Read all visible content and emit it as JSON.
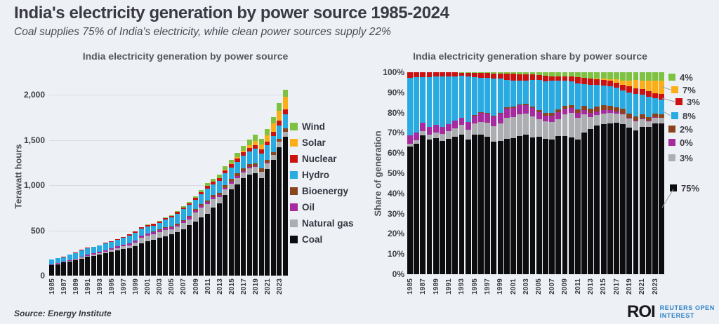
{
  "header": {
    "title": "India's electricity generation by power source 1985-2024",
    "subtitle": "Coal supplies 75% of India's electricity, while clean power sources supply 22%"
  },
  "charts": {
    "left": {
      "title": "India electricity generation by power source",
      "y_axis_label": "Terawatt hours",
      "y_ticks": [
        "0",
        "500",
        "1,000",
        "1,500",
        "2,000"
      ]
    },
    "right": {
      "title": "India electricity generation share by power source",
      "y_axis_label": "Share of generation",
      "y_ticks": [
        "0%",
        "10%",
        "20%",
        "30%",
        "40%",
        "50%",
        "60%",
        "70%",
        "80%",
        "90%",
        "100%"
      ]
    }
  },
  "legend": {
    "items": [
      {
        "label": "Wind",
        "color": "#7FC241"
      },
      {
        "label": "Solar",
        "color": "#FBAE17"
      },
      {
        "label": "Nuclear",
        "color": "#CC1111"
      },
      {
        "label": "Hydro",
        "color": "#29ABE2"
      },
      {
        "label": "Bioenergy",
        "color": "#8A431C"
      },
      {
        "label": "Oil",
        "color": "#A62B9E"
      },
      {
        "label": "Natural gas",
        "color": "#ACAEB1"
      },
      {
        "label": "Coal",
        "color": "#0D0D0F"
      }
    ]
  },
  "footer": {
    "source": "Source: Energy Institute",
    "logo_text": "ROI",
    "logo_line1": "REUTERS OPEN",
    "logo_line2": "INTEREST"
  },
  "chart_data": [
    {
      "type": "bar",
      "stacked": true,
      "title": "India electricity generation by power source",
      "xlabel": "",
      "ylabel": "Terawatt hours",
      "ylim": [
        0,
        2100
      ],
      "y_tick_values": [
        0,
        500,
        1000,
        1500,
        2000
      ],
      "x_tick_step": 2,
      "x_years": [
        1985,
        1986,
        1987,
        1988,
        1989,
        1990,
        1991,
        1992,
        1993,
        1994,
        1995,
        1996,
        1997,
        1998,
        1999,
        2000,
        2001,
        2002,
        2003,
        2004,
        2005,
        2006,
        2007,
        2008,
        2009,
        2010,
        2011,
        2012,
        2013,
        2014,
        2015,
        2016,
        2017,
        2018,
        2019,
        2020,
        2021,
        2022,
        2023,
        2024
      ],
      "unit": "TWh",
      "series": [
        {
          "name": "Coal",
          "color": "#0D0D0F",
          "values": [
            114,
            128,
            144,
            157,
            173,
            190,
            206,
            219,
            233,
            245,
            265,
            278,
            292,
            301,
            323,
            360,
            380,
            395,
            415,
            435,
            455,
            480,
            515,
            555,
            600,
            640,
            680,
            750,
            800,
            890,
            950,
            1010,
            1075,
            1120,
            1130,
            1075,
            1180,
            1280,
            1420,
            1535
          ]
        },
        {
          "name": "Natural gas",
          "color": "#ACAEB1",
          "values": [
            2,
            3,
            4,
            5,
            7,
            10,
            12,
            14,
            16,
            18,
            22,
            26,
            30,
            35,
            42,
            56,
            60,
            62,
            63,
            66,
            60,
            62,
            65,
            68,
            95,
            115,
            110,
            95,
            67,
            60,
            66,
            70,
            68,
            70,
            69,
            70,
            64,
            50,
            58,
            55
          ]
        },
        {
          "name": "Oil",
          "color": "#A62B9E",
          "values": [
            8,
            8,
            9,
            9,
            10,
            10,
            11,
            12,
            12,
            13,
            15,
            18,
            20,
            22,
            24,
            25,
            25,
            25,
            26,
            26,
            22,
            20,
            25,
            28,
            25,
            22,
            23,
            23,
            22,
            23,
            23,
            20,
            15,
            10,
            7,
            5,
            4,
            3,
            3,
            3
          ]
        },
        {
          "name": "Bioenergy",
          "color": "#8A431C",
          "values": [
            0,
            0,
            0,
            0,
            0,
            0,
            0,
            0,
            0,
            1,
            1,
            1,
            1,
            2,
            2,
            2,
            3,
            3,
            4,
            5,
            8,
            9,
            10,
            12,
            14,
            15,
            18,
            23,
            25,
            28,
            30,
            30,
            31,
            32,
            33,
            33,
            32,
            33,
            33,
            33
          ]
        },
        {
          "name": "Hydro",
          "color": "#29ABE2",
          "values": [
            51,
            54,
            47,
            58,
            62,
            72,
            73,
            70,
            70,
            83,
            72,
            69,
            75,
            83,
            82,
            74,
            74,
            68,
            70,
            85,
            99,
            114,
            124,
            117,
            107,
            111,
            131,
            115,
            132,
            129,
            124,
            129,
            135,
            140,
            162,
            164,
            160,
            175,
            149,
            155
          ]
        },
        {
          "name": "Nuclear",
          "color": "#CC1111",
          "values": [
            5,
            5,
            5,
            6,
            5,
            6,
            6,
            7,
            5,
            6,
            8,
            9,
            10,
            12,
            13,
            17,
            19,
            19,
            18,
            17,
            17,
            19,
            17,
            15,
            19,
            23,
            32,
            33,
            33,
            36,
            37,
            38,
            38,
            39,
            45,
            45,
            44,
            46,
            48,
            55
          ]
        },
        {
          "name": "Solar",
          "color": "#FBAE17",
          "values": [
            0,
            0,
            0,
            0,
            0,
            0,
            0,
            0,
            0,
            0,
            0,
            0,
            0,
            0,
            0,
            0,
            0,
            0,
            0,
            0,
            0,
            0,
            0,
            0,
            0,
            0,
            1,
            1,
            3,
            5,
            7,
            12,
            22,
            35,
            46,
            60,
            68,
            95,
            113,
            138
          ]
        },
        {
          "name": "Wind",
          "color": "#7FC241",
          "values": [
            0,
            0,
            0,
            0,
            0,
            0,
            0,
            0,
            1,
            1,
            1,
            2,
            2,
            3,
            3,
            3,
            4,
            5,
            6,
            7,
            9,
            12,
            15,
            18,
            19,
            20,
            25,
            29,
            33,
            36,
            41,
            45,
            52,
            60,
            63,
            60,
            68,
            71,
            82,
            83
          ]
        }
      ]
    },
    {
      "type": "bar",
      "stacked": true,
      "normalized_percent": true,
      "title": "India electricity generation share by power source",
      "xlabel": "",
      "ylabel": "Share of generation",
      "ylim": [
        0,
        100
      ],
      "x_years_same_as_first": true,
      "x_tick_step": 2,
      "note": "Each bar shows every source's percent share of that year's total generation, derived from the series values of the first chart",
      "end_labels": [
        {
          "name": "Wind",
          "label": "4%",
          "color": "#7FC241"
        },
        {
          "name": "Solar",
          "label": "7%",
          "color": "#FBAE17"
        },
        {
          "name": "Nuclear",
          "label": "3%",
          "color": "#CC1111"
        },
        {
          "name": "Hydro",
          "label": "8%",
          "color": "#29ABE2"
        },
        {
          "name": "Bioenergy",
          "label": "2%",
          "color": "#8A431C"
        },
        {
          "name": "Oil",
          "label": "0%",
          "color": "#A62B9E"
        },
        {
          "name": "Natural gas",
          "label": "3%",
          "color": "#ACAEB1"
        },
        {
          "name": "Coal",
          "label": "75%",
          "color": "#0D0D0F"
        }
      ]
    }
  ]
}
